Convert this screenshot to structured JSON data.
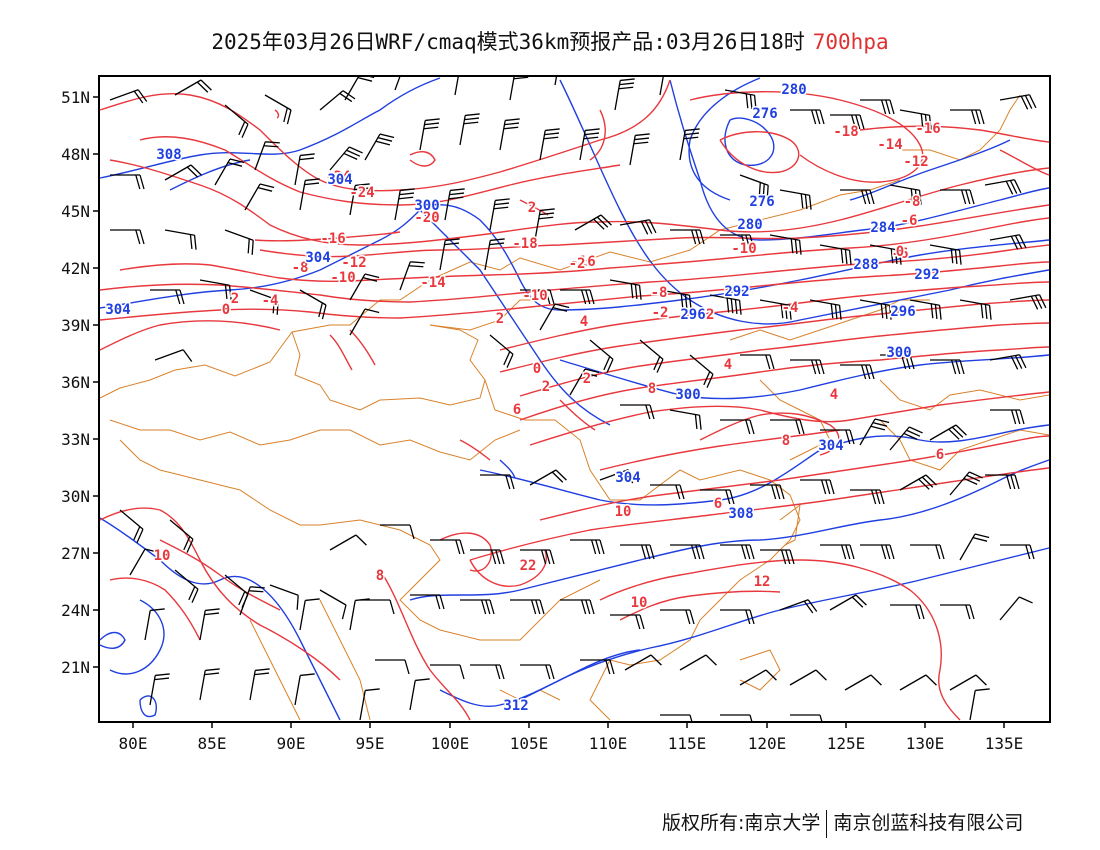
{
  "title": {
    "main": "2025年03月26日WRF/cmaq模式36km预报产品:03月26日18时",
    "level": "700hpa"
  },
  "colors": {
    "temperature": "#e8383d",
    "geopotential": "#1f3fe0",
    "border": "#d9822b",
    "wind": "#000000"
  },
  "axes": {
    "lat_labels": [
      "51N",
      "48N",
      "45N",
      "42N",
      "39N",
      "36N",
      "33N",
      "30N",
      "27N",
      "24N",
      "21N"
    ],
    "lon_labels": [
      "80E",
      "85E",
      "90E",
      "95E",
      "100E",
      "105E",
      "110E",
      "115E",
      "120E",
      "125E",
      "130E",
      "135E"
    ]
  },
  "temperature_labels": [
    "-24",
    "-24",
    "-20",
    "-16",
    "-16",
    "-16",
    "-18",
    "-18",
    "-14",
    "-14",
    "-12",
    "-12",
    "-10",
    "-10",
    "-10",
    "-8",
    "-8",
    "-8",
    "-6",
    "-6",
    "-4",
    "-4",
    "-2",
    "-2",
    "-2",
    "0",
    "0",
    "0",
    "2",
    "2",
    "2",
    "2",
    "4",
    "4",
    "4",
    "6",
    "6",
    "6",
    "8",
    "8",
    "8",
    "10",
    "10",
    "10",
    "12",
    "22",
    "2"
  ],
  "height_labels": [
    "308",
    "304",
    "304",
    "304",
    "300",
    "300",
    "304",
    "308",
    "312",
    "296",
    "292",
    "288",
    "284",
    "280",
    "276",
    "276",
    "280",
    "292",
    "296",
    "300",
    "304"
  ],
  "footer": {
    "left": "版权所有:南京大学",
    "right": "南京创蓝科技有限公司"
  }
}
